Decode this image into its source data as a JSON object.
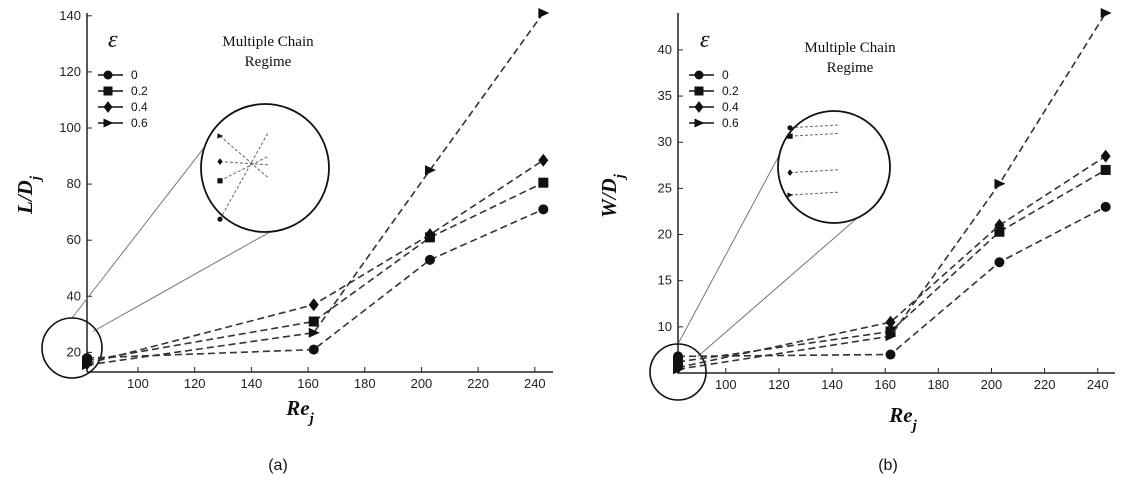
{
  "chart_data": [
    {
      "type": "line",
      "panel_label": "(a)",
      "ylabel": "L/D",
      "ylabel_sub": "j",
      "xlabel": "Re",
      "xlabel_sub": "j",
      "xlim": [
        82,
        245
      ],
      "ylim": [
        13,
        141
      ],
      "x_ticks": [
        100,
        120,
        140,
        160,
        180,
        200,
        220,
        240
      ],
      "y_ticks": [
        20,
        40,
        60,
        80,
        100,
        120,
        140
      ],
      "legend_title": "ε",
      "legend_location": "top-left",
      "inset_title": [
        "Multiple Chain",
        "Regime"
      ],
      "x": [
        82,
        162,
        203,
        243
      ],
      "series": [
        {
          "name": "0",
          "marker": "circle",
          "values": [
            18,
            21,
            53,
            71
          ]
        },
        {
          "name": "0.2",
          "marker": "square",
          "values": [
            17,
            31,
            61,
            80.5
          ]
        },
        {
          "name": "0.4",
          "marker": "diamond",
          "values": [
            16,
            37,
            62,
            88.5
          ]
        },
        {
          "name": "0.6",
          "marker": "triangle-right",
          "values": [
            15.5,
            27,
            85,
            141
          ]
        }
      ]
    },
    {
      "type": "line",
      "panel_label": "(b)",
      "ylabel": "W/D",
      "ylabel_sub": "j",
      "xlabel": "Re",
      "xlabel_sub": "j",
      "xlim": [
        82,
        245
      ],
      "ylim": [
        5,
        44
      ],
      "x_ticks": [
        100,
        120,
        140,
        160,
        180,
        200,
        220,
        240
      ],
      "y_ticks": [
        10,
        15,
        20,
        25,
        30,
        35,
        40
      ],
      "legend_title": "ε",
      "legend_location": "top-left",
      "inset_title": [
        "Multiple Chain",
        "Regime"
      ],
      "x": [
        82,
        162,
        203,
        243
      ],
      "series": [
        {
          "name": "0",
          "marker": "circle",
          "values": [
            6.8,
            7,
            17,
            23
          ]
        },
        {
          "name": "0.2",
          "marker": "square",
          "values": [
            6.2,
            9.5,
            20.3,
            27
          ]
        },
        {
          "name": "0.4",
          "marker": "diamond",
          "values": [
            5.6,
            10.5,
            21,
            28.5
          ]
        },
        {
          "name": "0.6",
          "marker": "triangle-right",
          "values": [
            5.4,
            9,
            25.5,
            44
          ]
        }
      ]
    }
  ]
}
